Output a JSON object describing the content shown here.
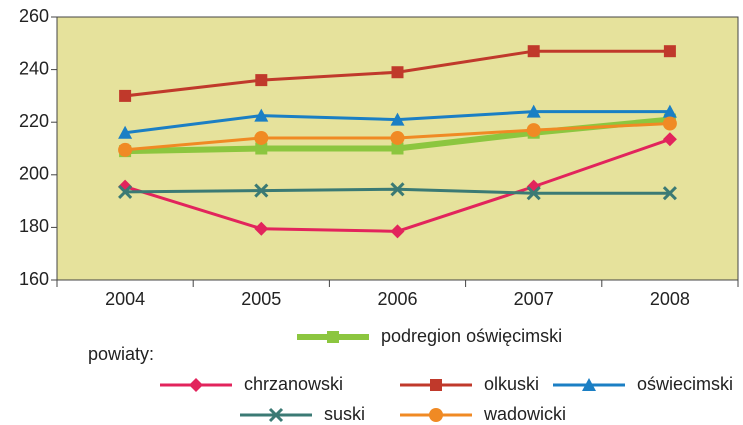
{
  "chart_data": {
    "type": "line",
    "categories": [
      "2004",
      "2005",
      "2006",
      "2007",
      "2008"
    ],
    "ylim": [
      160,
      260
    ],
    "yticks": [
      160,
      180,
      200,
      220,
      240,
      260
    ],
    "plot_background": "#e6e29c",
    "legend_group_label": "powiaty:",
    "series": [
      {
        "name": "podregion oświęcimski",
        "color": "#8cc63f",
        "marker": "square",
        "width": 6,
        "values": [
          209,
          210,
          210,
          216,
          221
        ]
      },
      {
        "name": "chrzanowski",
        "color": "#e2245c",
        "marker": "diamond",
        "width": 3,
        "values": [
          195.5,
          179.5,
          178.5,
          195.5,
          213.5
        ]
      },
      {
        "name": "olkuski",
        "color": "#c0392b",
        "marker": "square",
        "width": 3,
        "values": [
          230,
          236,
          239,
          247,
          247
        ]
      },
      {
        "name": "oświecimski",
        "color": "#1b7fc4",
        "marker": "triangle",
        "width": 3,
        "values": [
          216,
          222.5,
          221,
          224,
          224
        ]
      },
      {
        "name": "suski",
        "color": "#3b7a74",
        "marker": "x",
        "width": 3,
        "values": [
          193.5,
          194,
          194.5,
          193,
          193
        ]
      },
      {
        "name": "wadowicki",
        "color": "#f08a24",
        "marker": "circle",
        "width": 3,
        "values": [
          209.5,
          214,
          214,
          217,
          219.5
        ]
      }
    ]
  }
}
